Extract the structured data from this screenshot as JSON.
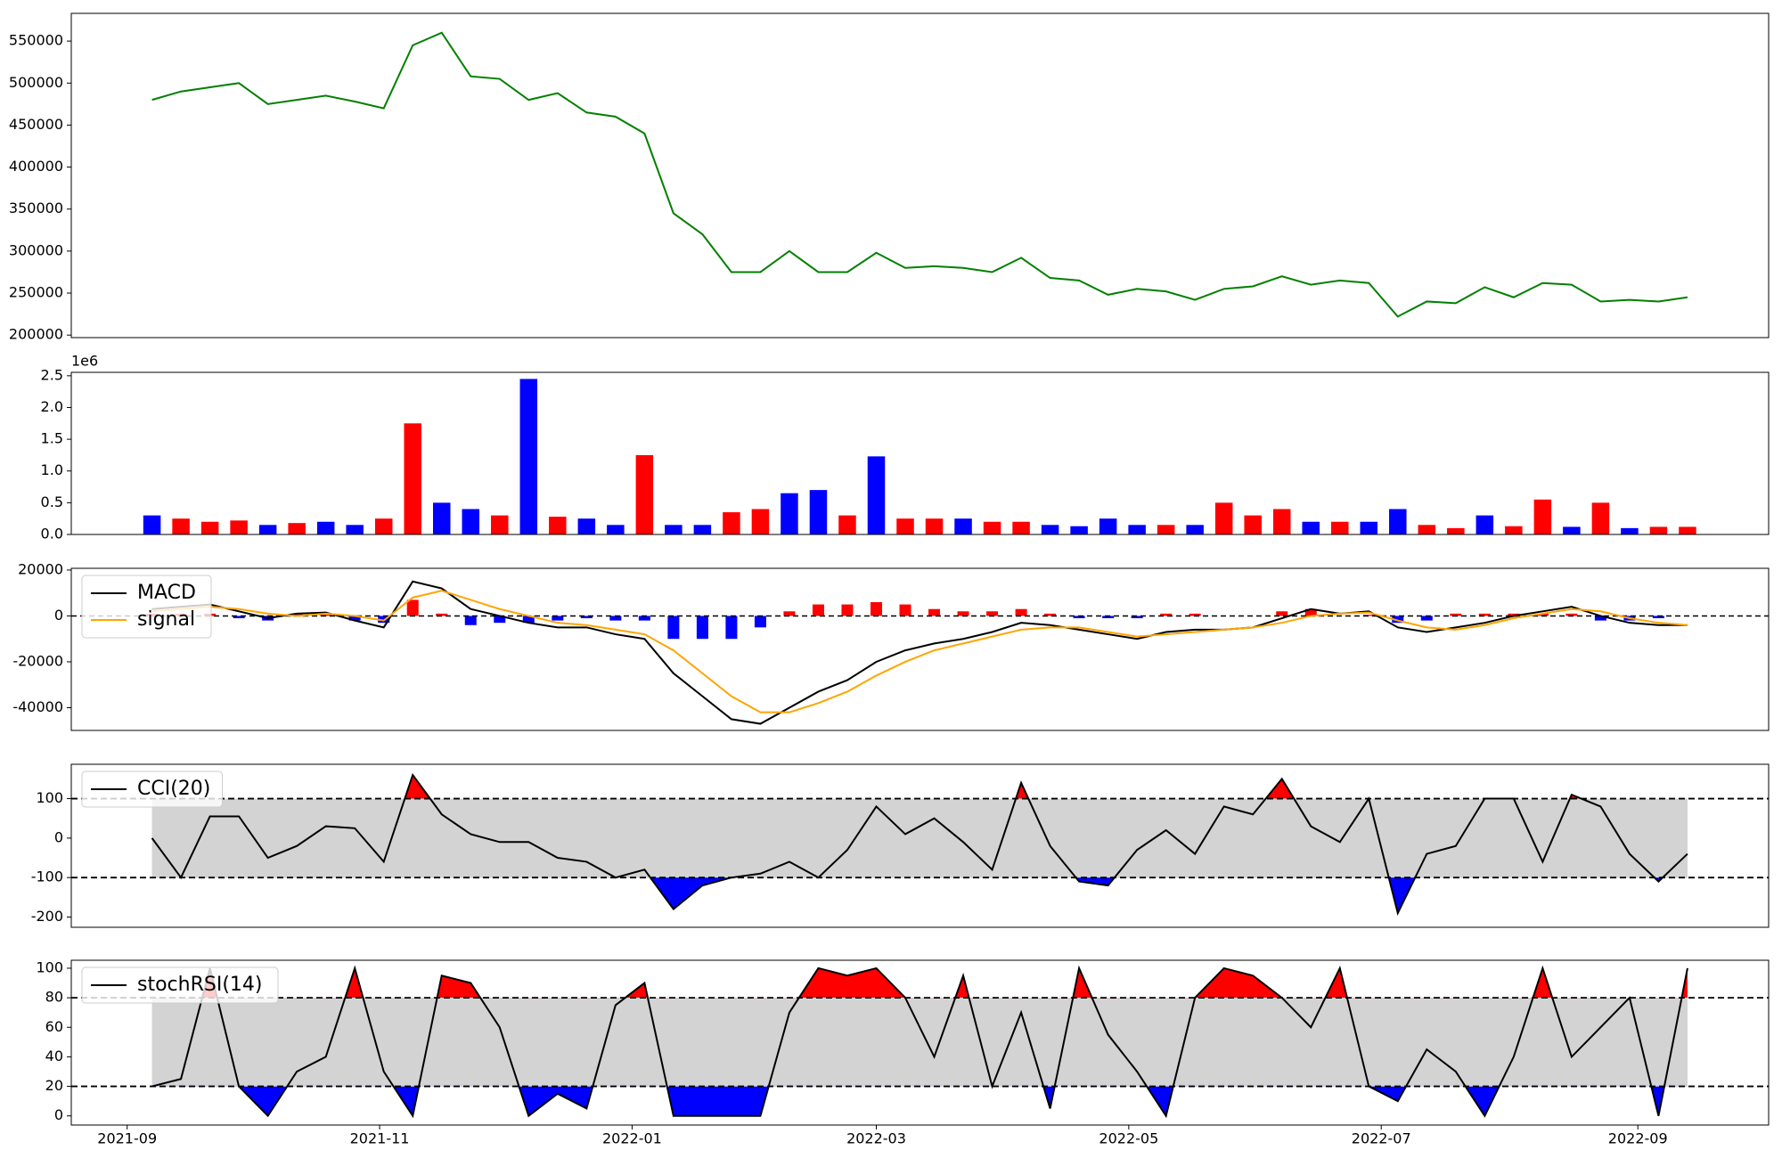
{
  "chart_data": [
    {
      "type": "line",
      "x": [
        6,
        13,
        20,
        27,
        34,
        41,
        48,
        55,
        62,
        69,
        76,
        83,
        90,
        97,
        104,
        111,
        118,
        125,
        132,
        139,
        146,
        153,
        160,
        167,
        174,
        181,
        188,
        195,
        202,
        209,
        216,
        223,
        230,
        237,
        244,
        251,
        258,
        265,
        272,
        279,
        286,
        293,
        300,
        307,
        314,
        321,
        328,
        335,
        342,
        349,
        356,
        363,
        370,
        377
      ],
      "xlim": [
        -13.5,
        396.6
      ],
      "ylim": [
        197000,
        583000
      ],
      "yticks": [
        200000,
        250000,
        300000,
        350000,
        400000,
        450000,
        500000,
        550000
      ],
      "series": [
        {
          "color": "#008000",
          "values": [
            480000,
            490000,
            495000,
            500000,
            475000,
            480000,
            485000,
            478000,
            470000,
            545000,
            560000,
            508000,
            505000,
            480000,
            488000,
            465000,
            460000,
            440000,
            345000,
            320000,
            275000,
            275000,
            300000,
            275000,
            275000,
            298000,
            280000,
            282000,
            280000,
            275000,
            292000,
            268000,
            265000,
            248000,
            255000,
            252000,
            242000,
            255000,
            258000,
            270000,
            260000,
            265000,
            262000,
            222000,
            240000,
            238000,
            257000,
            245000,
            262000,
            260000,
            240000,
            242000,
            240000,
            245000
          ]
        }
      ]
    },
    {
      "type": "bar",
      "x": [
        6,
        13,
        20,
        27,
        34,
        41,
        48,
        55,
        62,
        69,
        76,
        83,
        90,
        97,
        104,
        111,
        118,
        125,
        132,
        139,
        146,
        153,
        160,
        167,
        174,
        181,
        188,
        195,
        202,
        209,
        216,
        223,
        230,
        237,
        244,
        251,
        258,
        265,
        272,
        279,
        286,
        293,
        300,
        307,
        314,
        321,
        328,
        335,
        342,
        349,
        356,
        363,
        370,
        377
      ],
      "xlim": [
        -13.5,
        396.6
      ],
      "ylim": [
        0,
        2554000
      ],
      "offset_label": "1e6",
      "yticks": [
        {
          "value": 0,
          "label": "0.0"
        },
        {
          "value": 500000,
          "label": "0.5"
        },
        {
          "value": 1000000,
          "label": "1.0"
        },
        {
          "value": 1500000,
          "label": "1.5"
        },
        {
          "value": 2000000,
          "label": "2.0"
        },
        {
          "value": 2500000,
          "label": "2.5"
        }
      ],
      "values": [
        300000,
        250000,
        200000,
        220000,
        150000,
        180000,
        200000,
        150000,
        250000,
        1750000,
        500000,
        400000,
        300000,
        2450000,
        280000,
        250000,
        150000,
        1250000,
        150000,
        150000,
        350000,
        400000,
        650000,
        700000,
        300000,
        1230000,
        250000,
        250000,
        250000,
        200000,
        200000,
        150000,
        130000,
        250000,
        150000,
        150000,
        150000,
        500000,
        300000,
        400000,
        200000,
        200000,
        200000,
        400000,
        150000,
        100000,
        300000,
        130000,
        550000,
        120000,
        500000,
        100000,
        120000,
        120000
      ],
      "colors": [
        "blue",
        "red",
        "red",
        "red",
        "blue",
        "red",
        "blue",
        "blue",
        "red",
        "red",
        "blue",
        "blue",
        "red",
        "blue",
        "red",
        "blue",
        "blue",
        "red",
        "blue",
        "blue",
        "red",
        "red",
        "blue",
        "blue",
        "red",
        "blue",
        "red",
        "red",
        "blue",
        "red",
        "red",
        "blue",
        "blue",
        "blue",
        "blue",
        "red",
        "blue",
        "red",
        "red",
        "red",
        "blue",
        "red",
        "blue",
        "blue",
        "red",
        "red",
        "blue",
        "red",
        "red",
        "blue",
        "red",
        "blue",
        "red",
        "red"
      ]
    },
    {
      "type": "line",
      "x": [
        6,
        13,
        20,
        27,
        34,
        41,
        48,
        55,
        62,
        69,
        76,
        83,
        90,
        97,
        104,
        111,
        118,
        125,
        132,
        139,
        146,
        153,
        160,
        167,
        174,
        181,
        188,
        195,
        202,
        209,
        216,
        223,
        230,
        237,
        244,
        251,
        258,
        265,
        272,
        279,
        286,
        293,
        300,
        307,
        314,
        321,
        328,
        335,
        342,
        349,
        356,
        363,
        370,
        377
      ],
      "xlim": [
        -13.5,
        396.6
      ],
      "ylim": [
        -49900,
        20750
      ],
      "yticks": [
        -40000,
        -20000,
        0,
        20000
      ],
      "zero_line": true,
      "legend": "upper left",
      "series": [
        {
          "name": "MACD",
          "color": "#000000",
          "values": [
            3000,
            4000,
            5000,
            2000,
            -1000,
            1000,
            1500,
            -2000,
            -5000,
            15000,
            12000,
            3000,
            0,
            -3000,
            -5000,
            -5000,
            -8000,
            -10000,
            -25000,
            -35000,
            -45000,
            -47000,
            -40000,
            -33000,
            -28000,
            -20000,
            -15000,
            -12000,
            -10000,
            -7000,
            -3000,
            -4000,
            -6000,
            -8000,
            -10000,
            -7000,
            -6000,
            -6000,
            -5000,
            -1000,
            3000,
            1000,
            2000,
            -5000,
            -7000,
            -5000,
            -3000,
            0,
            2000,
            4000,
            0,
            -3000,
            -4000,
            -4000
          ]
        },
        {
          "name": "signal",
          "color": "#ffa500",
          "values": [
            2000,
            3000,
            4000,
            3000,
            1000,
            0,
            1000,
            0,
            -2000,
            8000,
            11000,
            7000,
            3000,
            0,
            -3000,
            -4000,
            -6000,
            -8000,
            -15000,
            -25000,
            -35000,
            -42000,
            -42000,
            -38000,
            -33000,
            -26000,
            -20000,
            -15000,
            -12000,
            -9000,
            -6000,
            -5000,
            -5000,
            -7000,
            -9000,
            -8000,
            -7000,
            -6000,
            -5000,
            -3000,
            0,
            1000,
            1500,
            -2000,
            -5000,
            -6000,
            -4000,
            -1000,
            1000,
            3000,
            2000,
            -1000,
            -3000,
            -4000
          ]
        }
      ],
      "histogram": {
        "pos_color": "red",
        "neg_color": "blue",
        "values": [
          1000,
          1000,
          1000,
          -1000,
          -2000,
          1000,
          500,
          -2000,
          -3000,
          7000,
          1000,
          -4000,
          -3000,
          -3000,
          -2000,
          -1000,
          -2000,
          -2000,
          -10000,
          -10000,
          -10000,
          -5000,
          2000,
          5000,
          5000,
          6000,
          5000,
          3000,
          2000,
          2000,
          3000,
          1000,
          -1000,
          -1000,
          -1000,
          1000,
          1000,
          0,
          0,
          2000,
          3000,
          0,
          500,
          -3000,
          -2000,
          1000,
          1000,
          1000,
          1000,
          1000,
          -2000,
          -2000,
          -1000,
          0
        ]
      }
    },
    {
      "type": "line",
      "x": [
        6,
        13,
        20,
        27,
        34,
        41,
        48,
        55,
        62,
        69,
        76,
        83,
        90,
        97,
        104,
        111,
        118,
        125,
        132,
        139,
        146,
        153,
        160,
        167,
        174,
        181,
        188,
        195,
        202,
        209,
        216,
        223,
        230,
        237,
        244,
        251,
        258,
        265,
        272,
        279,
        286,
        293,
        300,
        307,
        314,
        321,
        328,
        335,
        342,
        349,
        356,
        363,
        370,
        377
      ],
      "xlim": [
        -13.5,
        396.6
      ],
      "ylim": [
        -226,
        187
      ],
      "yticks": [
        -200,
        -100,
        0,
        100
      ],
      "band": [
        -100,
        100
      ],
      "band_color": "#d3d3d3",
      "above_color": "red",
      "below_color": "blue",
      "legend": "upper left",
      "series": [
        {
          "name": "CCI(20)",
          "color": "#000000",
          "values": [
            0,
            -100,
            55,
            55,
            -50,
            -20,
            30,
            25,
            -60,
            160,
            60,
            10,
            -10,
            -10,
            -50,
            -60,
            -100,
            -80,
            -180,
            -120,
            -100,
            -90,
            -60,
            -100,
            -30,
            80,
            10,
            50,
            -10,
            -80,
            140,
            -20,
            -110,
            -120,
            -30,
            20,
            -40,
            80,
            60,
            150,
            30,
            -10,
            100,
            -190,
            -40,
            -20,
            100,
            100,
            -60,
            110,
            80,
            -40,
            -110,
            -40
          ]
        }
      ]
    },
    {
      "type": "line",
      "x": [
        6,
        13,
        20,
        27,
        34,
        41,
        48,
        55,
        62,
        69,
        76,
        83,
        90,
        97,
        104,
        111,
        118,
        125,
        132,
        139,
        146,
        153,
        160,
        167,
        174,
        181,
        188,
        195,
        202,
        209,
        216,
        223,
        230,
        237,
        244,
        251,
        258,
        265,
        272,
        279,
        286,
        293,
        300,
        307,
        314,
        321,
        328,
        335,
        342,
        349,
        356,
        363,
        370,
        377
      ],
      "xlim": [
        -13.5,
        396.6
      ],
      "ylim": [
        -6.2,
        105.4
      ],
      "yticks": [
        0,
        20,
        40,
        60,
        80,
        100
      ],
      "xticks": [
        {
          "value": 0,
          "label": "2021-09"
        },
        {
          "value": 61,
          "label": "2021-11"
        },
        {
          "value": 122,
          "label": "2022-01"
        },
        {
          "value": 181,
          "label": "2022-03"
        },
        {
          "value": 242,
          "label": "2022-05"
        },
        {
          "value": 303,
          "label": "2022-07"
        },
        {
          "value": 365,
          "label": "2022-09"
        }
      ],
      "band": [
        20,
        80
      ],
      "band_color": "#d3d3d3",
      "above_color": "red",
      "below_color": "blue",
      "legend": "upper left",
      "series": [
        {
          "name": "stochRSI(14)",
          "color": "#000000",
          "values": [
            20,
            25,
            100,
            20,
            0,
            30,
            40,
            100,
            30,
            0,
            95,
            90,
            60,
            0,
            15,
            5,
            75,
            90,
            0,
            0,
            0,
            0,
            70,
            100,
            95,
            100,
            80,
            40,
            95,
            20,
            70,
            5,
            100,
            55,
            30,
            0,
            80,
            100,
            95,
            80,
            60,
            100,
            20,
            10,
            45,
            30,
            0,
            40,
            100,
            40,
            60,
            80,
            0,
            100
          ]
        }
      ]
    }
  ]
}
